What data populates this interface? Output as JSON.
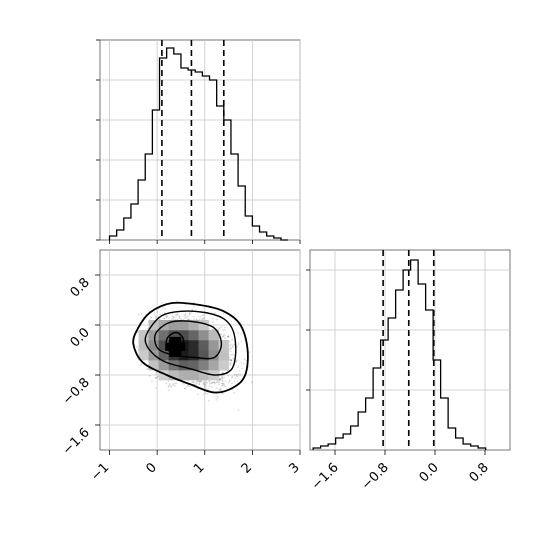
{
  "chart_data": [
    {
      "panel": "marginal-x",
      "type": "histogram",
      "xlim": [
        -1.2,
        3.0
      ],
      "ylim": [
        0,
        1.0
      ],
      "bin_edges": [
        -1.0,
        -0.85,
        -0.7,
        -0.55,
        -0.4,
        -0.25,
        -0.1,
        0.05,
        0.2,
        0.35,
        0.5,
        0.65,
        0.8,
        0.95,
        1.1,
        1.25,
        1.4,
        1.55,
        1.7,
        1.85,
        2.0,
        2.15,
        2.3,
        2.45,
        2.6,
        2.75
      ],
      "counts": [
        0.02,
        0.05,
        0.11,
        0.18,
        0.3,
        0.43,
        0.65,
        0.91,
        0.96,
        0.93,
        0.86,
        0.85,
        0.84,
        0.82,
        0.8,
        0.67,
        0.6,
        0.43,
        0.27,
        0.12,
        0.07,
        0.04,
        0.02,
        0.01,
        0.0
      ],
      "quantile_lines": [
        0.1,
        0.72,
        1.4
      ],
      "x_ticks": [
        -1,
        0,
        1,
        2,
        3
      ],
      "grid": true
    },
    {
      "panel": "joint",
      "type": "2d-histogram-contour",
      "xlim": [
        -1.2,
        3.0
      ],
      "ylim": [
        -2.0,
        1.2
      ],
      "x_ticks": [
        -1,
        0,
        1,
        2,
        3
      ],
      "y_ticks": [
        -1.6,
        -0.8,
        0.0,
        0.8
      ],
      "x_tick_labels": [
        "−1",
        "0",
        "1",
        "2",
        "3"
      ],
      "y_tick_labels": [
        "−1.6",
        "−0.8",
        "0.0",
        "0.8"
      ],
      "density_peak": [
        0.38,
        -0.35
      ],
      "contours": [
        [
          [
            -0.4,
            -0.05
          ],
          [
            -0.15,
            0.2
          ],
          [
            0.3,
            0.35
          ],
          [
            0.9,
            0.32
          ],
          [
            1.4,
            0.22
          ],
          [
            1.75,
            0.0
          ],
          [
            1.9,
            -0.4
          ],
          [
            1.85,
            -0.8
          ],
          [
            1.6,
            -1.0
          ],
          [
            1.2,
            -1.08
          ],
          [
            0.7,
            -0.95
          ],
          [
            0.2,
            -0.8
          ],
          [
            -0.3,
            -0.6
          ],
          [
            -0.5,
            -0.3
          ]
        ],
        [
          [
            -0.15,
            -0.05
          ],
          [
            0.1,
            0.15
          ],
          [
            0.5,
            0.22
          ],
          [
            1.0,
            0.2
          ],
          [
            1.4,
            0.1
          ],
          [
            1.6,
            -0.1
          ],
          [
            1.65,
            -0.45
          ],
          [
            1.55,
            -0.72
          ],
          [
            1.2,
            -0.8
          ],
          [
            0.7,
            -0.7
          ],
          [
            0.2,
            -0.6
          ],
          [
            -0.1,
            -0.45
          ],
          [
            -0.25,
            -0.25
          ]
        ],
        [
          [
            0.0,
            -0.1
          ],
          [
            0.3,
            0.05
          ],
          [
            0.8,
            0.05
          ],
          [
            1.2,
            -0.05
          ],
          [
            1.35,
            -0.3
          ],
          [
            1.2,
            -0.52
          ],
          [
            0.8,
            -0.52
          ],
          [
            0.35,
            -0.48
          ],
          [
            0.05,
            -0.4
          ],
          [
            -0.05,
            -0.25
          ]
        ],
        [
          [
            0.22,
            -0.2
          ],
          [
            0.4,
            -0.12
          ],
          [
            0.55,
            -0.22
          ],
          [
            0.5,
            -0.38
          ],
          [
            0.32,
            -0.45
          ],
          [
            0.2,
            -0.35
          ]
        ]
      ],
      "grid": true
    },
    {
      "panel": "marginal-y",
      "type": "histogram",
      "xlim": [
        -2.0,
        1.2
      ],
      "ylim": [
        0,
        1.0
      ],
      "bin_edges": [
        -1.95,
        -1.83,
        -1.71,
        -1.59,
        -1.47,
        -1.35,
        -1.23,
        -1.11,
        -0.99,
        -0.87,
        -0.75,
        -0.63,
        -0.51,
        -0.39,
        -0.27,
        -0.15,
        -0.03,
        0.09,
        0.21,
        0.33,
        0.45,
        0.57,
        0.69,
        0.81
      ],
      "counts": [
        0.01,
        0.02,
        0.03,
        0.06,
        0.08,
        0.12,
        0.19,
        0.26,
        0.41,
        0.55,
        0.66,
        0.8,
        0.9,
        0.95,
        0.83,
        0.7,
        0.45,
        0.26,
        0.11,
        0.06,
        0.03,
        0.02,
        0.01
      ],
      "quantile_lines": [
        -0.83,
        -0.42,
        -0.02
      ],
      "x_ticks": [
        -1.6,
        -0.8,
        0.0,
        0.8
      ],
      "x_tick_labels": [
        "−1.6",
        "−0.8",
        "0.0",
        "0.8"
      ],
      "grid": true
    }
  ]
}
